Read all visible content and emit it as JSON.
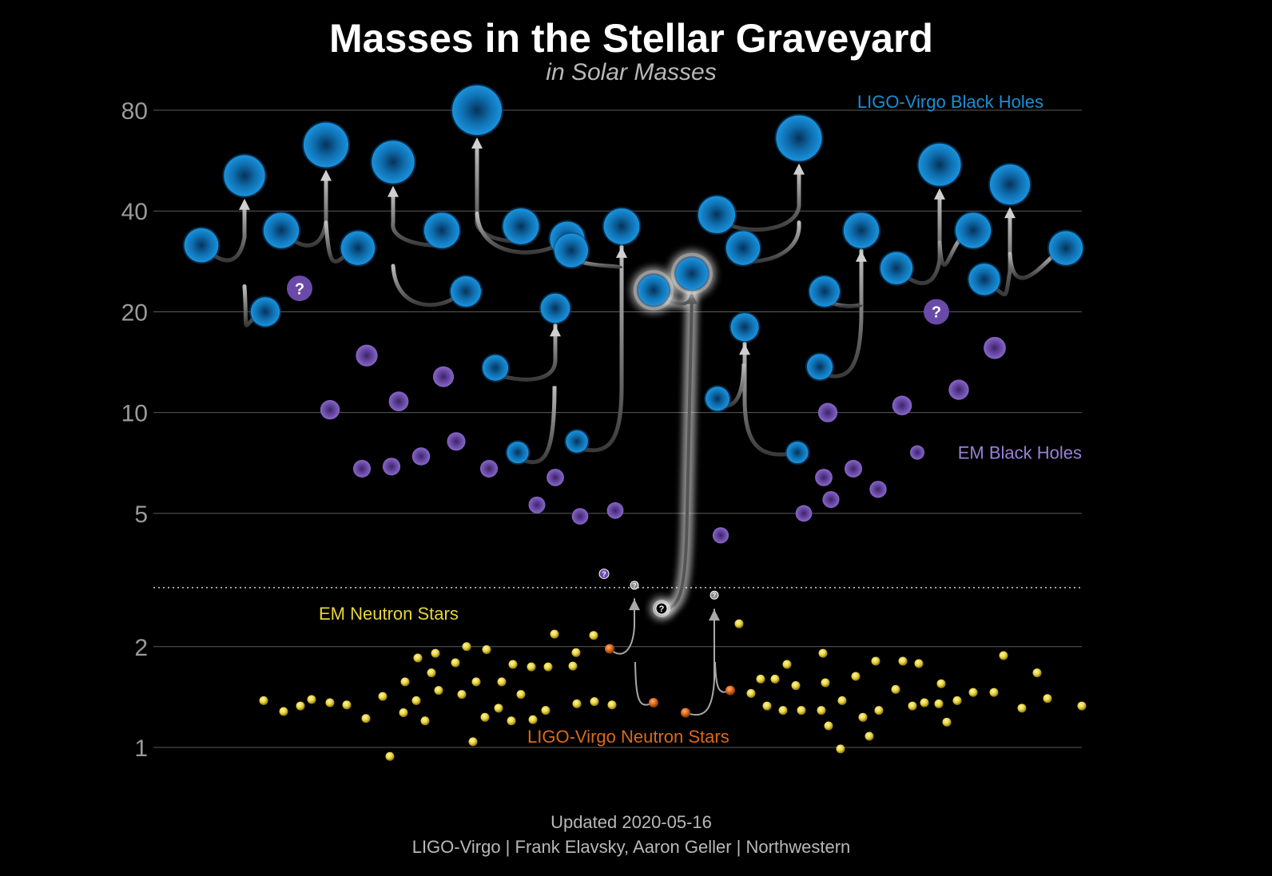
{
  "title": "Masses in the Stellar Graveyard",
  "subtitle": "in Solar Masses",
  "footer": {
    "updated": "Updated 2020-05-16",
    "credit": "LIGO-Virgo | Frank Elavsky, Aaron Geller | Northwestern"
  },
  "colors": {
    "background": "#000000",
    "ligo_bh": "#1a8fd6",
    "em_bh": "#7a58b8",
    "em_ns": "#e8d43c",
    "ligo_ns": "#d96a1a",
    "merger_arrow": "#9a9a9a",
    "highlight": "#ffffff"
  },
  "chart_data": {
    "type": "scatter",
    "title": "Masses in the Stellar Graveyard",
    "subtitle": "in Solar Masses",
    "y_scale": "log",
    "ylim": [
      0.9,
      90
    ],
    "y_ticks": [
      1,
      2,
      5,
      10,
      20,
      40,
      80
    ],
    "grid": true,
    "ns_bh_divider_mass": 3.0,
    "series": [
      {
        "name": "LIGO-Virgo Black Holes",
        "key": "ligo_bh",
        "mergers": [
          {
            "m1": 31.6,
            "m2": 20.0,
            "final": 51.0
          },
          {
            "m1": 35.0,
            "m2": 31.0,
            "final": 63.0
          },
          {
            "m1": 35.0,
            "m2": 23.0,
            "final": 56.0
          },
          {
            "m1": 36.0,
            "m2": 33.0,
            "final": 80.0,
            "remnant_left": true
          },
          {
            "m1": 13.6,
            "m2": 20.5,
            "final": 20.5,
            "target_is_m2": true
          },
          {
            "m1": 7.6,
            "m2": 8.2,
            "final": 36.0,
            "chain": true
          },
          {
            "m1": 23.0,
            "m2": 26.0,
            "final": 26.0,
            "highlight": true,
            "partner": "ns_gap"
          },
          {
            "m1": 39.0,
            "m2": 31.0,
            "final": 66.0,
            "remnant_right": true
          },
          {
            "m1": 11.0,
            "m2": 7.6,
            "final": 18.0
          },
          {
            "m1": 23.0,
            "m2": 13.7,
            "final": 35.0
          },
          {
            "m1": 27.0,
            "m2": 30.0,
            "final": 55.0
          },
          {
            "m1": 35.0,
            "m2": 25.0,
            "final": 48.0
          },
          {
            "m1": 31.0,
            "final": 31.0,
            "single": true
          }
        ]
      },
      {
        "name": "EM Black Holes",
        "key": "em_bh",
        "masses": [
          10.2,
          6.8,
          14.8,
          6.9,
          10.8,
          7.4,
          12.8,
          8.2,
          6.8,
          5.3,
          6.4,
          4.9,
          5.1,
          4.3,
          5.0,
          6.4,
          5.5,
          10.0,
          6.8,
          5.9,
          10.5,
          11.7,
          15.6
        ]
      },
      {
        "name": "EM Neutron Stars",
        "key": "em_ns",
        "count": 114
      },
      {
        "name": "LIGO-Virgo Neutron Stars",
        "key": "ligo_ns",
        "mergers": [
          {
            "m1": 1.36,
            "m2": 1.97,
            "final": 2.8
          },
          {
            "m1": 1.27,
            "m2": 1.48,
            "final": 2.6
          }
        ]
      }
    ],
    "unknown_markers": {
      "big_question": "?",
      "small_question": "?"
    }
  }
}
